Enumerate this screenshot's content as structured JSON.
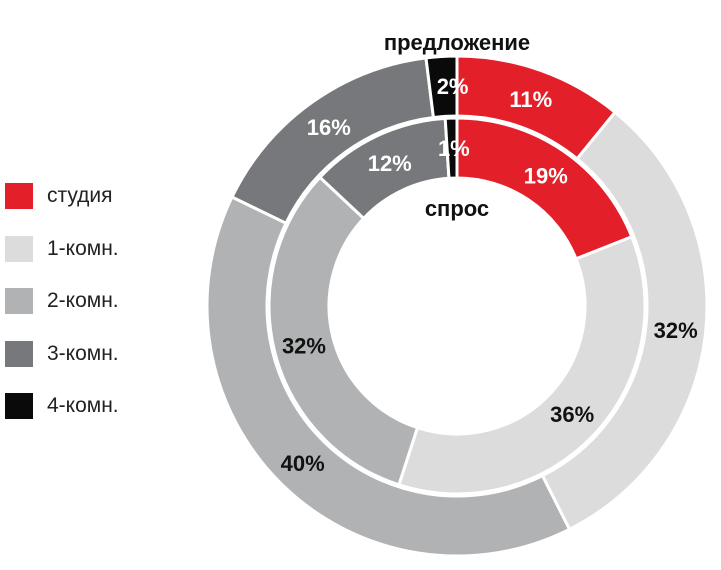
{
  "chart_data": {
    "type": "pie",
    "subtype": "nested-donut",
    "categories": [
      "студия",
      "1-комн.",
      "2-комн.",
      "3-комн.",
      "4-комн."
    ],
    "colors": [
      "#e3202a",
      "#dcdcdd",
      "#b1b2b4",
      "#77787b",
      "#0a0a0a"
    ],
    "label_colors": [
      "#ffffff",
      "#111111",
      "#111111",
      "#ffffff",
      "#ffffff"
    ],
    "series": [
      {
        "name": "предложение",
        "ring": "outer",
        "values": [
          11,
          32,
          40,
          16,
          2
        ],
        "labels": [
          "11%",
          "32%",
          "40%",
          "16%",
          "2%"
        ]
      },
      {
        "name": "спрос",
        "ring": "inner",
        "values": [
          19,
          36,
          32,
          12,
          1
        ],
        "labels": [
          "19%",
          "36%",
          "32%",
          "12%",
          "1%"
        ]
      }
    ],
    "legend_position": "left"
  }
}
